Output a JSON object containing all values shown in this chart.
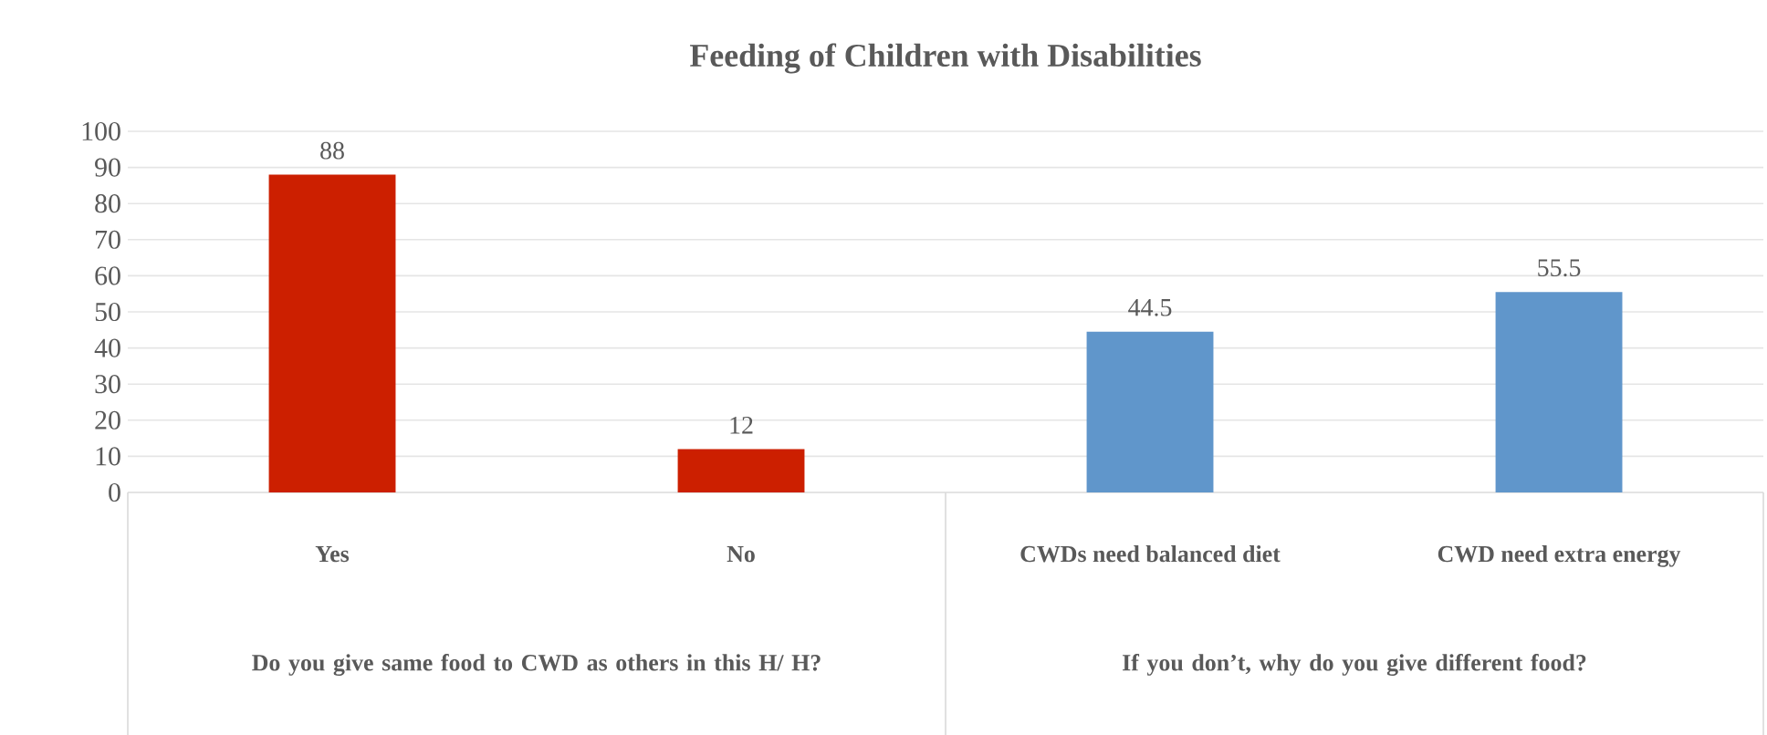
{
  "chart_data": {
    "type": "bar",
    "title": "Feeding of Children with Disabilities",
    "categories": [
      "Yes",
      "No",
      "CWDs need balanced diet",
      "CWD need extra energy"
    ],
    "values": [
      88,
      12,
      44.5,
      55.5
    ],
    "colors": [
      "#cc1f00",
      "#cc1f00",
      "#6096cb",
      "#6096cb"
    ],
    "ylim": [
      0,
      100
    ],
    "yticks": [
      0,
      10,
      20,
      30,
      40,
      50,
      60,
      70,
      80,
      90,
      100
    ],
    "grid": "y",
    "data_labels": true,
    "annotations": [
      "Do you give same food to CWD  as others in this H/ H?",
      "If you don’t, why do you give different food?"
    ]
  }
}
